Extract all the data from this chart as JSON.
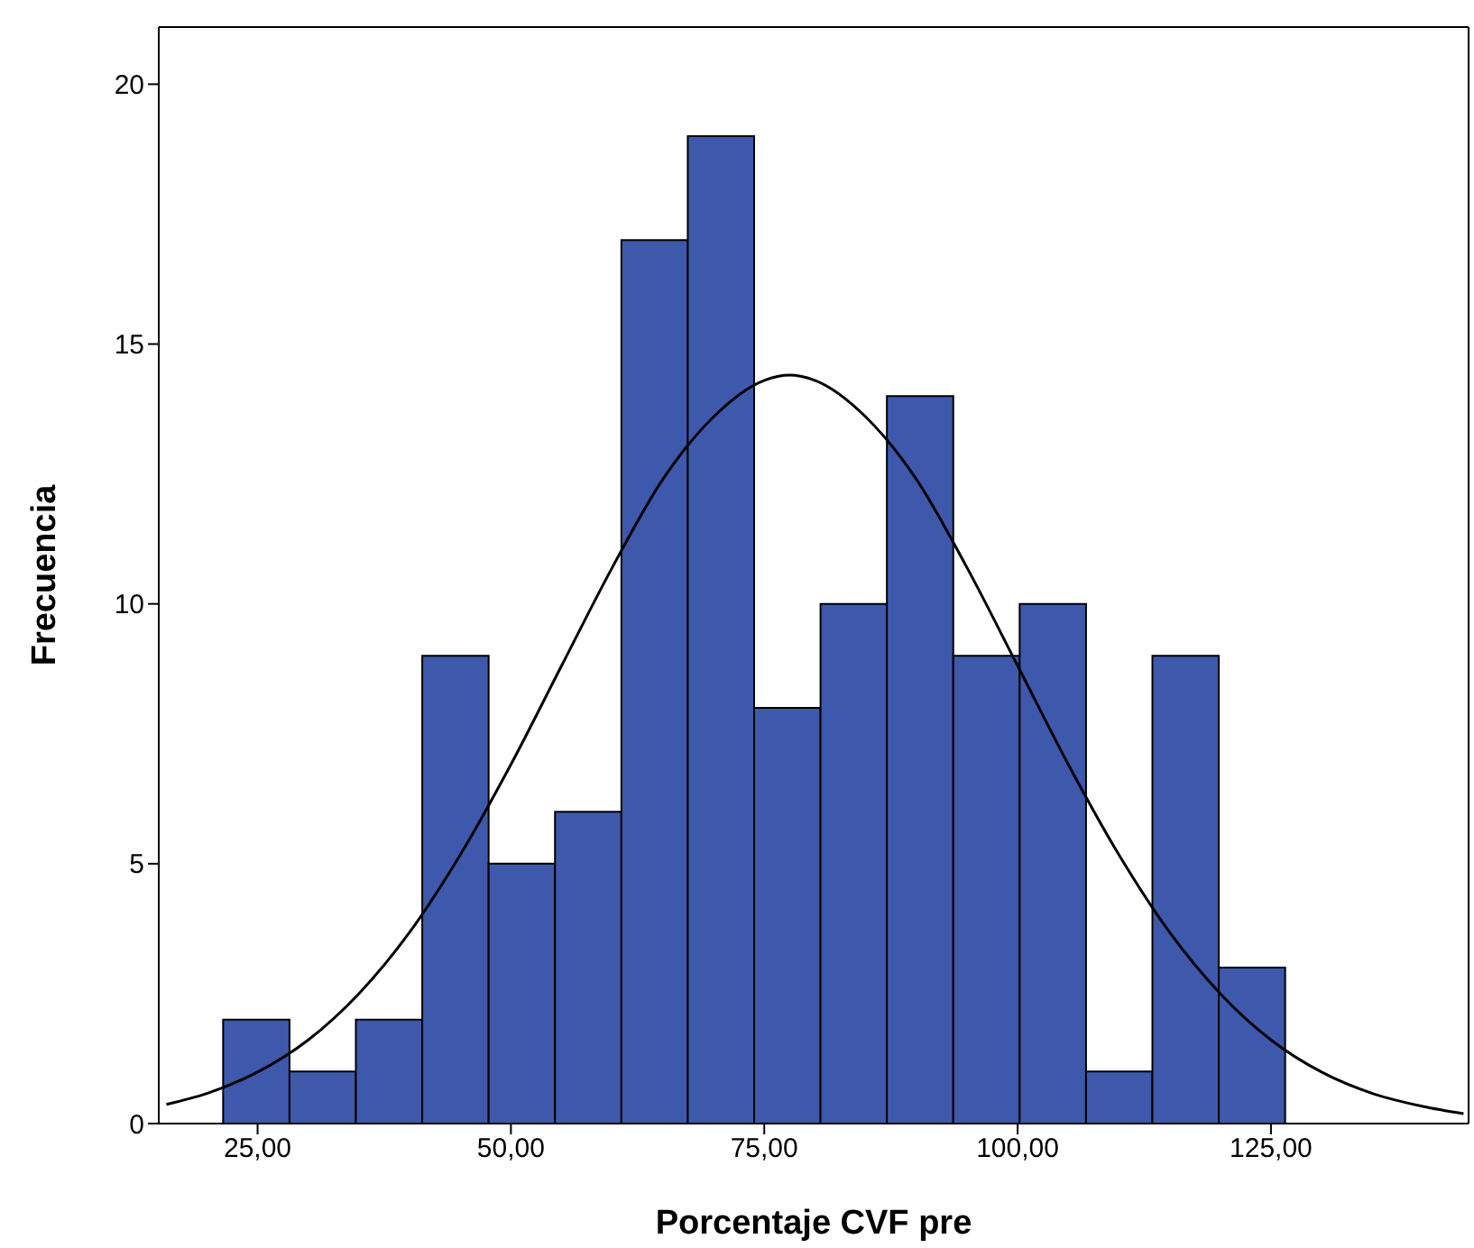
{
  "chart_data": {
    "type": "histogram",
    "xlabel": "Porcentaje CVF pre",
    "ylabel": "Frecuencia",
    "bins": [
      21.6,
      28.15,
      34.7,
      41.25,
      47.8,
      54.35,
      60.9,
      67.45,
      74.0,
      80.55,
      87.1,
      93.65,
      100.2,
      106.75,
      113.3,
      119.85,
      126.4
    ],
    "values": [
      2,
      1,
      2,
      9,
      5,
      6,
      17,
      19,
      8,
      10,
      14,
      9,
      10,
      1,
      9,
      3
    ],
    "color": "#3e58ab",
    "series": [
      {
        "type": "line",
        "color": "#000000",
        "x": [
          16,
          20,
          25,
          30,
          35,
          40,
          45,
          50,
          55,
          60,
          65,
          70,
          75,
          77.5,
          80,
          85,
          90,
          95,
          100,
          105,
          110,
          115,
          120,
          125,
          130,
          135,
          140,
          144
        ],
        "values": [
          0.37,
          0.58,
          0.99,
          1.61,
          2.5,
          3.68,
          5.17,
          6.91,
          8.81,
          10.7,
          12.4,
          13.6,
          14.3,
          14.4,
          14.3,
          13.6,
          12.4,
          10.7,
          8.81,
          6.91,
          5.17,
          3.68,
          2.5,
          1.61,
          0.99,
          0.58,
          0.33,
          0.19
        ]
      }
    ],
    "xlim": [
      15.25,
      144.5
    ],
    "ylim": [
      0,
      21.1
    ],
    "xticks": [
      {
        "value": 25,
        "label": "25,00"
      },
      {
        "value": 50,
        "label": "50,00"
      },
      {
        "value": 75,
        "label": "75,00"
      },
      {
        "value": 100,
        "label": "100,00"
      },
      {
        "value": 125,
        "label": "125,00"
      }
    ],
    "yticks": [
      0,
      5,
      10,
      15,
      20
    ],
    "grid": false,
    "marker": "none",
    "line_style": "solid"
  }
}
